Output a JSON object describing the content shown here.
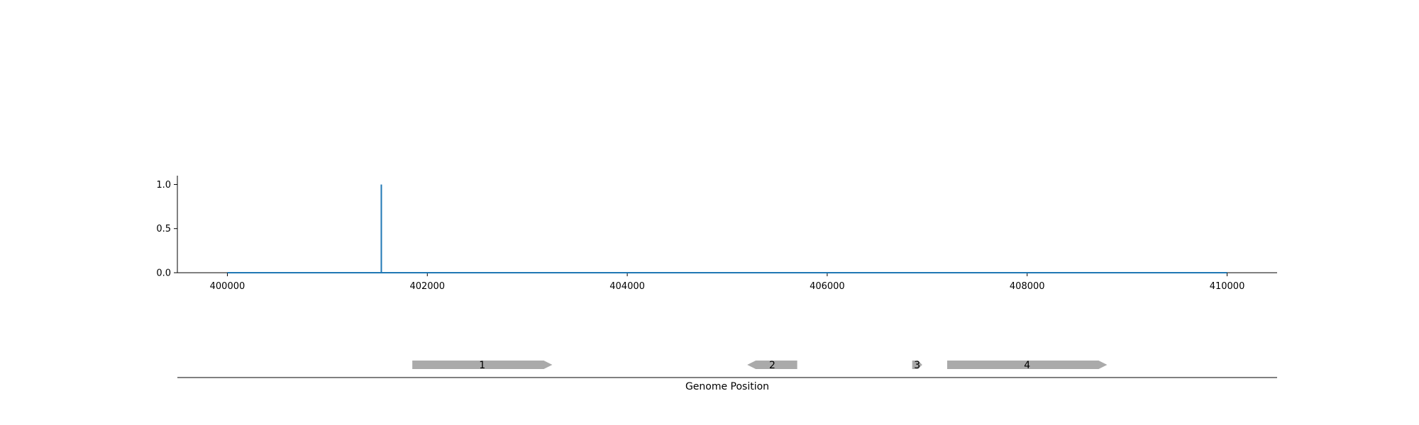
{
  "chart_data": [
    {
      "type": "line",
      "title": "",
      "xlabel": "",
      "ylabel": "",
      "xlim": [
        399500,
        410500
      ],
      "ylim": [
        0,
        1.1
      ],
      "x_ticks": [
        400000,
        402000,
        404000,
        406000,
        408000,
        410000
      ],
      "x_tick_labels": [
        "400000",
        "402000",
        "404000",
        "406000",
        "408000",
        "410000"
      ],
      "y_ticks": [
        0.0,
        0.5,
        1.0
      ],
      "y_tick_labels": [
        "0.0",
        "0.5",
        "1.0"
      ],
      "series": [
        {
          "color": "#1f77b4",
          "x": [
            400000,
            401540,
            401540,
            401540,
            410000
          ],
          "y": [
            0,
            0,
            1.0,
            0,
            0
          ]
        }
      ],
      "grid": false
    },
    {
      "type": "gene_track",
      "xlabel": "Genome Position",
      "xlim": [
        399500,
        410500
      ],
      "gene_color": "#aaaaaa",
      "genes": [
        {
          "label": "1",
          "start": 401850,
          "end": 403250,
          "strand": "+"
        },
        {
          "label": "2",
          "start": 405200,
          "end": 405700,
          "strand": "-"
        },
        {
          "label": "3",
          "start": 406850,
          "end": 406950,
          "strand": "+"
        },
        {
          "label": "4",
          "start": 407200,
          "end": 408800,
          "strand": "+"
        }
      ]
    }
  ]
}
